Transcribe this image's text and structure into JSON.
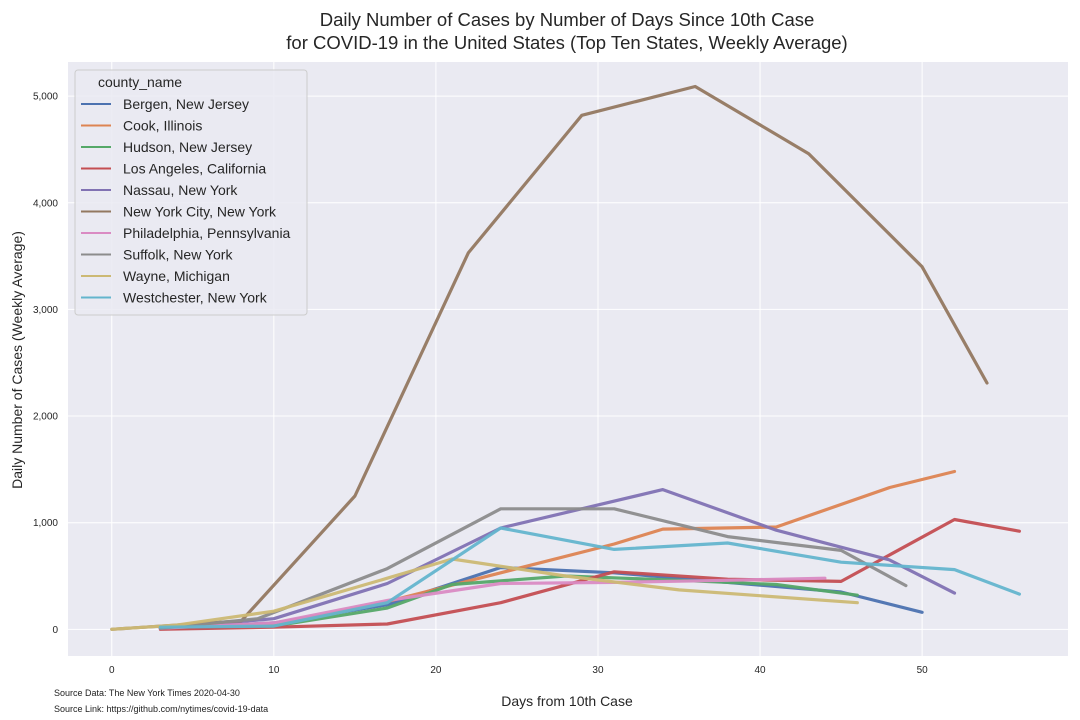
{
  "chart_data": {
    "type": "line",
    "title": "Daily Number of Cases by Number of Days Since 10th Case\nfor COVID-19 in the United States (Top Ten States, Weekly Average)",
    "xlabel": "Days from 10th Case",
    "ylabel": "Daily Number of Cases (Weekly Average)",
    "xlim": [
      -2.7,
      59
    ],
    "ylim": [
      -250,
      5320
    ],
    "xticks": [
      0,
      10,
      20,
      30,
      40,
      50
    ],
    "yticks": [
      0,
      1000,
      2000,
      3000,
      4000,
      5000
    ],
    "ytick_labels": [
      "0",
      "1,000",
      "2,000",
      "3,000",
      "4,000",
      "5,000"
    ],
    "legend": {
      "title": "county_name",
      "position": "top-left"
    },
    "grid": true,
    "background": "#eaeaf2",
    "series": [
      {
        "name": "Bergen, New Jersey",
        "color": "#4c72b0",
        "points": [
          [
            3,
            10
          ],
          [
            10,
            60
          ],
          [
            17,
            230
          ],
          [
            24,
            580
          ],
          [
            31,
            530
          ],
          [
            38,
            440
          ],
          [
            45,
            350
          ],
          [
            50,
            160
          ]
        ]
      },
      {
        "name": "Cook, Illinois",
        "color": "#dd8452",
        "points": [
          [
            3,
            10
          ],
          [
            10,
            40
          ],
          [
            17,
            260
          ],
          [
            24,
            530
          ],
          [
            31,
            800
          ],
          [
            34,
            940
          ],
          [
            41,
            960
          ],
          [
            48,
            1330
          ],
          [
            52,
            1480
          ]
        ]
      },
      {
        "name": "Hudson, New Jersey",
        "color": "#55a868",
        "points": [
          [
            3,
            10
          ],
          [
            10,
            30
          ],
          [
            17,
            200
          ],
          [
            21,
            420
          ],
          [
            28,
            500
          ],
          [
            35,
            460
          ],
          [
            41,
            420
          ],
          [
            46,
            320
          ]
        ]
      },
      {
        "name": "Los Angeles, California",
        "color": "#c44e52",
        "points": [
          [
            3,
            0
          ],
          [
            10,
            20
          ],
          [
            17,
            50
          ],
          [
            24,
            250
          ],
          [
            31,
            540
          ],
          [
            38,
            470
          ],
          [
            45,
            450
          ],
          [
            52,
            1030
          ],
          [
            56,
            920
          ]
        ]
      },
      {
        "name": "Nassau, New York",
        "color": "#8172b3",
        "points": [
          [
            3,
            10
          ],
          [
            10,
            100
          ],
          [
            17,
            430
          ],
          [
            24,
            950
          ],
          [
            34,
            1310
          ],
          [
            41,
            930
          ],
          [
            48,
            650
          ],
          [
            52,
            340
          ]
        ]
      },
      {
        "name": "New York City, New York",
        "color": "#937860",
        "points": [
          [
            0,
            0
          ],
          [
            8,
            80
          ],
          [
            15,
            1250
          ],
          [
            22,
            3530
          ],
          [
            29,
            4820
          ],
          [
            36,
            5090
          ],
          [
            43,
            4460
          ],
          [
            50,
            3400
          ],
          [
            54,
            2310
          ]
        ]
      },
      {
        "name": "Philadelphia, Pennsylvania",
        "color": "#da8bc3",
        "points": [
          [
            3,
            10
          ],
          [
            10,
            60
          ],
          [
            17,
            270
          ],
          [
            24,
            430
          ],
          [
            31,
            440
          ],
          [
            38,
            460
          ],
          [
            44,
            480
          ]
        ]
      },
      {
        "name": "Suffolk, New York",
        "color": "#8c8c8c",
        "points": [
          [
            3,
            10
          ],
          [
            9,
            100
          ],
          [
            17,
            570
          ],
          [
            24,
            1130
          ],
          [
            31,
            1130
          ],
          [
            38,
            870
          ],
          [
            45,
            740
          ],
          [
            49,
            410
          ]
        ]
      },
      {
        "name": "Wayne, Michigan",
        "color": "#ccb974",
        "points": [
          [
            0,
            0
          ],
          [
            4,
            40
          ],
          [
            10,
            170
          ],
          [
            17,
            480
          ],
          [
            21,
            660
          ],
          [
            28,
            500
          ],
          [
            35,
            370
          ],
          [
            46,
            250
          ]
        ]
      },
      {
        "name": "Westchester, New York",
        "color": "#64b5cd",
        "points": [
          [
            3,
            20
          ],
          [
            10,
            30
          ],
          [
            17,
            250
          ],
          [
            24,
            950
          ],
          [
            31,
            750
          ],
          [
            38,
            810
          ],
          [
            45,
            630
          ],
          [
            52,
            560
          ],
          [
            56,
            330
          ]
        ]
      }
    ]
  },
  "footer": {
    "source_data": "Source Data: The New York Times 2020-04-30",
    "source_link": "Source Link: https://github.com/nytimes/covid-19-data"
  }
}
